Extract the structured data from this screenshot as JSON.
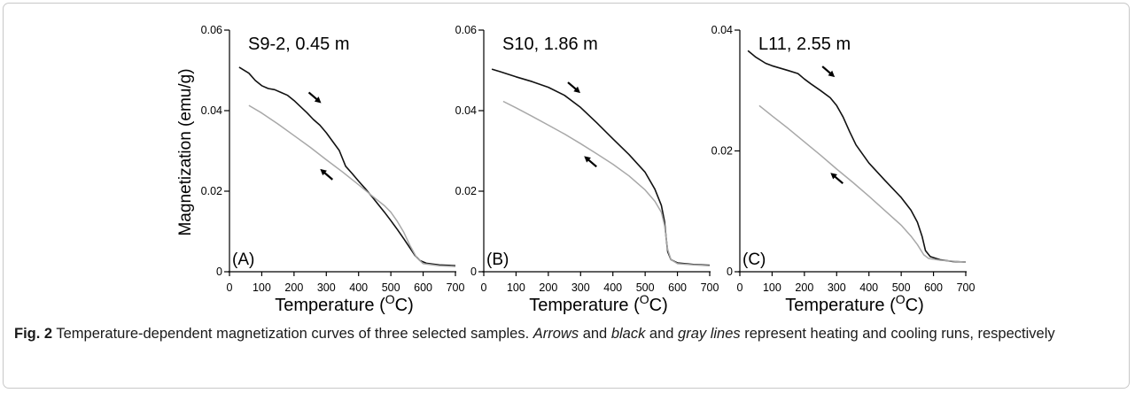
{
  "ylabel": "Magnetization (emu/g)",
  "xlabel_main": "Temperature (",
  "xlabel_sup": "O",
  "xlabel_end": "C)",
  "caption": {
    "label": "Fig. 2",
    "text1": " Temperature-dependent magnetization curves of three selected samples. ",
    "arrows": "Arrows",
    "text2": " and ",
    "black": "black",
    "text3": " and ",
    "gray": "gray lines",
    "text4": " represent heating and cooling runs, respectively"
  },
  "colors": {
    "heating": "#111111",
    "cooling": "#a8a8a8",
    "axis": "#000000"
  },
  "chart_data": [
    {
      "type": "line",
      "panel_label": "(A)",
      "title": "S9-2, 0.45 m",
      "xlabel": "Temperature (OC)",
      "ylabel": "Magnetization (emu/g)",
      "xlim": [
        0,
        700
      ],
      "ylim": [
        0,
        0.06
      ],
      "xticks": [
        0,
        100,
        200,
        300,
        400,
        500,
        600,
        700
      ],
      "yticks": [
        0,
        0.02,
        0.04,
        0.06
      ],
      "ytick_labels": [
        "0",
        "0.02",
        "0.04",
        "0.06"
      ],
      "series": [
        {
          "values": [
            [
              30,
              0.0508
            ],
            [
              60,
              0.0493
            ],
            [
              80,
              0.0475
            ],
            [
              100,
              0.0462
            ],
            [
              120,
              0.0455
            ],
            [
              140,
              0.0452
            ],
            [
              160,
              0.0445
            ],
            [
              180,
              0.0438
            ],
            [
              200,
              0.0425
            ],
            [
              220,
              0.041
            ],
            [
              240,
              0.0395
            ],
            [
              260,
              0.0378
            ],
            [
              280,
              0.0364
            ],
            [
              300,
              0.0345
            ],
            [
              320,
              0.0323
            ],
            [
              340,
              0.0301
            ],
            [
              360,
              0.0262
            ],
            [
              380,
              0.0244
            ],
            [
              400,
              0.0225
            ],
            [
              420,
              0.0207
            ],
            [
              440,
              0.0188
            ],
            [
              460,
              0.0168
            ],
            [
              480,
              0.0148
            ],
            [
              500,
              0.0127
            ],
            [
              520,
              0.0105
            ],
            [
              540,
              0.0082
            ],
            [
              560,
              0.0058
            ],
            [
              575,
              0.004
            ],
            [
              590,
              0.0028
            ],
            [
              610,
              0.0021
            ],
            [
              650,
              0.0017
            ],
            [
              700,
              0.0015
            ]
          ]
        },
        {
          "values": [
            [
              60,
              0.0413
            ],
            [
              100,
              0.0394
            ],
            [
              150,
              0.0367
            ],
            [
              200,
              0.0338
            ],
            [
              250,
              0.0309
            ],
            [
              300,
              0.0278
            ],
            [
              350,
              0.0248
            ],
            [
              400,
              0.0216
            ],
            [
              450,
              0.0183
            ],
            [
              480,
              0.0164
            ],
            [
              500,
              0.0148
            ],
            [
              520,
              0.0125
            ],
            [
              540,
              0.0098
            ],
            [
              560,
              0.0064
            ],
            [
              580,
              0.0035
            ],
            [
              600,
              0.002
            ],
            [
              650,
              0.0015
            ],
            [
              700,
              0.0013
            ]
          ]
        }
      ],
      "arrows": [
        {
          "dir": "heating",
          "x": 265,
          "y": 0.0432
        },
        {
          "dir": "cooling",
          "x": 300,
          "y": 0.0242
        }
      ]
    },
    {
      "type": "line",
      "panel_label": "(B)",
      "title": "S10, 1.86 m",
      "xlabel": "Temperature (OC)",
      "ylabel": "",
      "xlim": [
        0,
        700
      ],
      "ylim": [
        0,
        0.06
      ],
      "xticks": [
        0,
        100,
        200,
        300,
        400,
        500,
        600,
        700
      ],
      "yticks": [
        0,
        0.02,
        0.04,
        0.06
      ],
      "ytick_labels": [
        "0",
        "0.02",
        "0.04",
        "0.06"
      ],
      "series": [
        {
          "values": [
            [
              25,
              0.0503
            ],
            [
              50,
              0.0497
            ],
            [
              100,
              0.0484
            ],
            [
              150,
              0.0472
            ],
            [
              200,
              0.0458
            ],
            [
              250,
              0.0438
            ],
            [
              300,
              0.0408
            ],
            [
              350,
              0.037
            ],
            [
              400,
              0.033
            ],
            [
              450,
              0.0291
            ],
            [
              500,
              0.0247
            ],
            [
              530,
              0.0205
            ],
            [
              550,
              0.0165
            ],
            [
              560,
              0.0125
            ],
            [
              565,
              0.0085
            ],
            [
              570,
              0.005
            ],
            [
              580,
              0.003
            ],
            [
              600,
              0.0022
            ],
            [
              650,
              0.0018
            ],
            [
              700,
              0.0016
            ]
          ]
        },
        {
          "values": [
            [
              60,
              0.0423
            ],
            [
              100,
              0.0407
            ],
            [
              150,
              0.0386
            ],
            [
              200,
              0.0364
            ],
            [
              250,
              0.0342
            ],
            [
              300,
              0.0318
            ],
            [
              350,
              0.0293
            ],
            [
              400,
              0.0267
            ],
            [
              450,
              0.0238
            ],
            [
              500,
              0.0203
            ],
            [
              530,
              0.0175
            ],
            [
              550,
              0.0148
            ],
            [
              560,
              0.0115
            ],
            [
              570,
              0.0055
            ],
            [
              580,
              0.003
            ],
            [
              600,
              0.002
            ],
            [
              650,
              0.0017
            ],
            [
              700,
              0.0015
            ]
          ]
        }
      ],
      "arrows": [
        {
          "dir": "heating",
          "x": 280,
          "y": 0.0457
        },
        {
          "dir": "cooling",
          "x": 330,
          "y": 0.0274
        }
      ]
    },
    {
      "type": "line",
      "panel_label": "(C)",
      "title": "L11, 2.55 m",
      "xlabel": "Temperature (OC)",
      "ylabel": "",
      "xlim": [
        0,
        700
      ],
      "ylim": [
        0,
        0.04
      ],
      "xticks": [
        0,
        100,
        200,
        300,
        400,
        500,
        600,
        700
      ],
      "yticks": [
        0,
        0.02,
        0.04
      ],
      "ytick_labels": [
        "0",
        "0.02",
        "0.04"
      ],
      "series": [
        {
          "values": [
            [
              25,
              0.0366
            ],
            [
              50,
              0.0355
            ],
            [
              80,
              0.0345
            ],
            [
              100,
              0.0341
            ],
            [
              150,
              0.0333
            ],
            [
              180,
              0.0328
            ],
            [
              200,
              0.0319
            ],
            [
              220,
              0.0311
            ],
            [
              250,
              0.03
            ],
            [
              280,
              0.0288
            ],
            [
              300,
              0.0275
            ],
            [
              320,
              0.0256
            ],
            [
              340,
              0.0232
            ],
            [
              360,
              0.021
            ],
            [
              400,
              0.018
            ],
            [
              450,
              0.0151
            ],
            [
              500,
              0.0123
            ],
            [
              530,
              0.0102
            ],
            [
              550,
              0.0082
            ],
            [
              565,
              0.0058
            ],
            [
              575,
              0.0035
            ],
            [
              590,
              0.0025
            ],
            [
              620,
              0.002
            ],
            [
              660,
              0.0017
            ],
            [
              700,
              0.0016
            ]
          ]
        },
        {
          "values": [
            [
              60,
              0.0275
            ],
            [
              100,
              0.0258
            ],
            [
              150,
              0.0237
            ],
            [
              200,
              0.0215
            ],
            [
              250,
              0.0193
            ],
            [
              300,
              0.017
            ],
            [
              350,
              0.0148
            ],
            [
              400,
              0.0125
            ],
            [
              450,
              0.0101
            ],
            [
              500,
              0.0077
            ],
            [
              530,
              0.0059
            ],
            [
              550,
              0.0045
            ],
            [
              570,
              0.0028
            ],
            [
              585,
              0.0022
            ],
            [
              620,
              0.0019
            ],
            [
              700,
              0.0016
            ]
          ]
        }
      ],
      "arrows": [
        {
          "dir": "heating",
          "x": 275,
          "y": 0.0331
        },
        {
          "dir": "cooling",
          "x": 300,
          "y": 0.0155
        }
      ]
    }
  ]
}
